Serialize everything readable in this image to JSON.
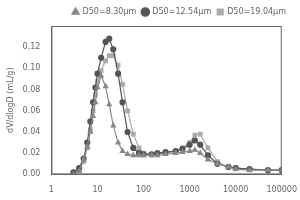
{
  "chart_data": {
    "type": "line",
    "ylabel": "dV/dlogD (mL/g)",
    "log": "x",
    "grid": false,
    "legend": "upper right",
    "xlim": [
      1,
      100000
    ],
    "xticks": [
      1,
      10,
      100,
      1000,
      10000,
      100000
    ],
    "ylim": [
      0,
      0.14
    ],
    "yticks": [
      {
        "value": 0,
        "label": "0.00"
      },
      0.02,
      0.04,
      0.06,
      0.08,
      {
        "value": 0.1,
        "label": "0.10"
      },
      0.12
    ],
    "x": [
      3,
      4,
      5,
      6,
      7,
      8,
      9,
      10,
      12,
      15,
      18,
      22,
      28,
      35,
      45,
      60,
      80,
      100,
      150,
      200,
      300,
      500,
      700,
      1000,
      1300,
      1700,
      2500,
      4000,
      7000,
      10000,
      20000,
      50000,
      100000
    ],
    "series": [
      {
        "name": "D50=8.30μm",
        "color": "#888888",
        "marker": "triangle",
        "values": [
          0.0,
          0.003,
          0.014,
          0.026,
          0.04,
          0.055,
          0.068,
          0.082,
          0.093,
          0.083,
          0.066,
          0.046,
          0.03,
          0.022,
          0.019,
          0.018,
          0.018,
          0.018,
          0.018,
          0.018,
          0.019,
          0.02,
          0.021,
          0.022,
          0.023,
          0.02,
          0.014,
          0.01,
          0.007,
          0.005,
          0.004,
          0.004,
          0.004
        ]
      },
      {
        "name": "D50=12.54μm",
        "color": "#555555",
        "marker": "circle",
        "values": [
          0.002,
          0.006,
          0.015,
          0.03,
          0.05,
          0.068,
          0.082,
          0.095,
          0.11,
          0.125,
          0.128,
          0.118,
          0.095,
          0.068,
          0.04,
          0.025,
          0.02,
          0.019,
          0.019,
          0.02,
          0.021,
          0.022,
          0.024,
          0.028,
          0.032,
          0.028,
          0.018,
          0.01,
          0.007,
          0.006,
          0.005,
          0.004,
          0.004
        ]
      },
      {
        "name": "D50=19.04μm",
        "color": "#aaaaaa",
        "marker": "square",
        "values": [
          0.001,
          0.004,
          0.012,
          0.025,
          0.042,
          0.06,
          0.075,
          0.088,
          0.098,
          0.107,
          0.112,
          0.112,
          0.103,
          0.085,
          0.06,
          0.038,
          0.025,
          0.02,
          0.019,
          0.019,
          0.02,
          0.022,
          0.025,
          0.03,
          0.037,
          0.038,
          0.025,
          0.012,
          0.007,
          0.006,
          0.005,
          0.004,
          0.004
        ]
      }
    ]
  }
}
